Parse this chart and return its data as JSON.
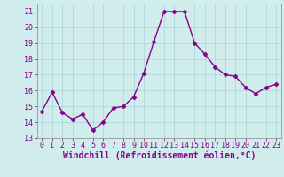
{
  "x": [
    0,
    1,
    2,
    3,
    4,
    5,
    6,
    7,
    8,
    9,
    10,
    11,
    12,
    13,
    14,
    15,
    16,
    17,
    18,
    19,
    20,
    21,
    22,
    23
  ],
  "y": [
    14.7,
    15.9,
    14.6,
    14.2,
    14.5,
    13.5,
    14.0,
    14.9,
    15.0,
    15.6,
    17.1,
    19.1,
    21.0,
    21.0,
    21.0,
    19.0,
    18.3,
    17.5,
    17.0,
    16.9,
    16.2,
    15.8,
    16.2,
    16.4
  ],
  "line_color": "#880088",
  "marker": "D",
  "markersize": 2.5,
  "linewidth": 1.0,
  "xlabel": "Windchill (Refroidissement éolien,°C)",
  "xlabel_fontsize": 7,
  "xlim": [
    -0.5,
    23.5
  ],
  "ylim": [
    13,
    21.5
  ],
  "yticks": [
    13,
    14,
    15,
    16,
    17,
    18,
    19,
    20,
    21
  ],
  "xticks": [
    0,
    1,
    2,
    3,
    4,
    5,
    6,
    7,
    8,
    9,
    10,
    11,
    12,
    13,
    14,
    15,
    16,
    17,
    18,
    19,
    20,
    21,
    22,
    23
  ],
  "grid_color": "#b0d8d8",
  "bg_color": "#d0ecec",
  "tick_fontsize": 6,
  "spine_color": "#888888"
}
